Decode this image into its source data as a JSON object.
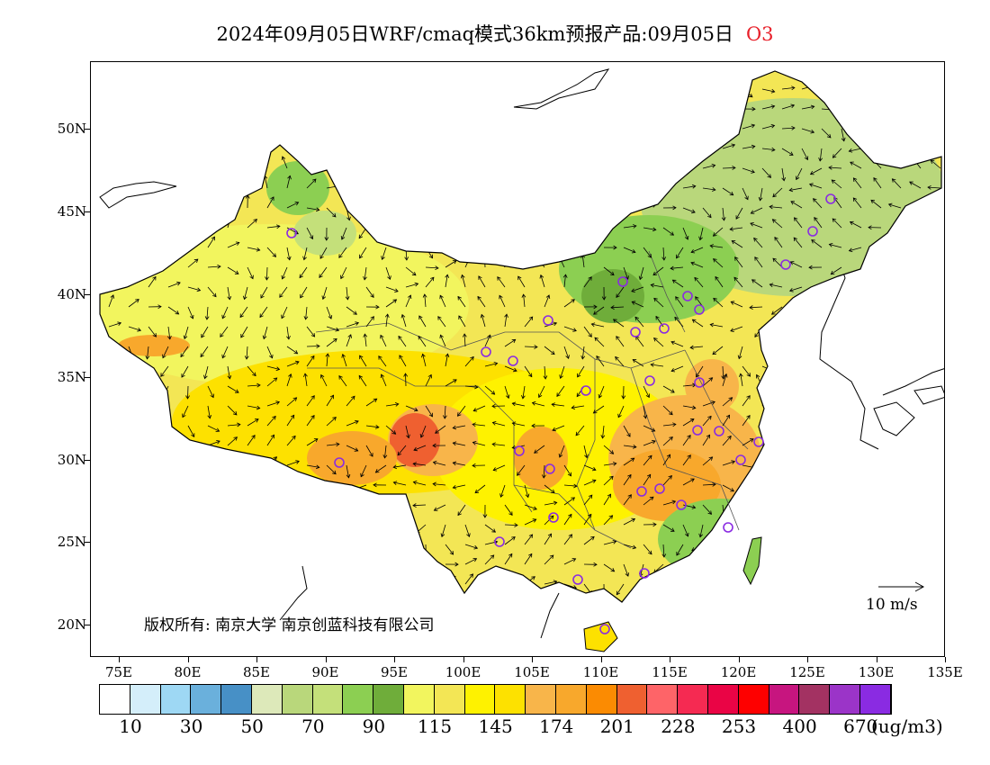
{
  "title": {
    "text": "2024年09月05日WRF/cmaq模式36km预报产品:09月05日",
    "species": "O3"
  },
  "map": {
    "lat_labels": [
      "50N",
      "45N",
      "40N",
      "35N",
      "30N",
      "25N",
      "20N"
    ],
    "lon_labels": [
      "75E",
      "80E",
      "85E",
      "90E",
      "95E",
      "100E",
      "105E",
      "110E",
      "115E",
      "120E",
      "125E",
      "130E",
      "135E"
    ],
    "copyright": "版权所有: 南京大学  南京创蓝科技有限公司",
    "wind_scale_label": "10  m/s"
  },
  "colorbar": {
    "colors": [
      "#ffffff",
      "#d4eefa",
      "#9ed8f4",
      "#6ab0dc",
      "#4790c6",
      "#dde9ba",
      "#b9d77b",
      "#c4e07a",
      "#8ccf52",
      "#6fad3a",
      "#f2f55e",
      "#f3e655",
      "#fef200",
      "#fde100",
      "#f8b54a",
      "#f8a82c",
      "#fb8b02",
      "#ef6030",
      "#fe6468",
      "#f52a52",
      "#ea0445",
      "#fe0000",
      "#c7157f",
      "#a33262",
      "#9b34c8",
      "#8a2be2"
    ],
    "labels": [
      "10",
      "30",
      "50",
      "70",
      "90",
      "115",
      "145",
      "174",
      "201",
      "228",
      "253",
      "400",
      "670"
    ],
    "unit": "(ug/m3)"
  },
  "cities": "markers shown as purple circles"
}
